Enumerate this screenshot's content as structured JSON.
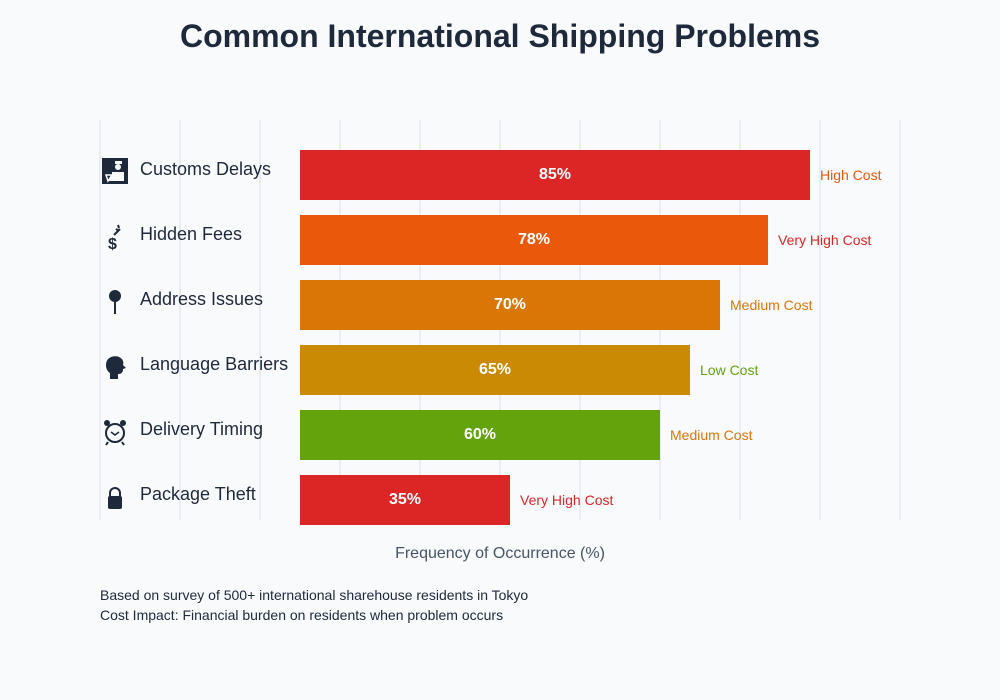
{
  "title": "Common International Shipping Problems",
  "xaxis_label": "Frequency of Occurrence (%)",
  "notes": [
    "Based on survey of 500+ international sharehouse residents in Tokyo",
    "Cost Impact: Financial burden on residents when problem occurs"
  ],
  "rows": [
    {
      "label": "Customs Delays",
      "icon": "customs-officer-icon",
      "value": 85,
      "value_label": "85%",
      "bar_color": "#dc2626",
      "cost": "High Cost",
      "cost_color": "#ea580c"
    },
    {
      "label": "Hidden Fees",
      "icon": "money-bag-icon",
      "value": 78,
      "value_label": "78%",
      "bar_color": "#ea580c",
      "cost": "Very High Cost",
      "cost_color": "#dc2626"
    },
    {
      "label": "Address Issues",
      "icon": "pushpin-icon",
      "value": 70,
      "value_label": "70%",
      "bar_color": "#d97706",
      "cost": "Medium Cost",
      "cost_color": "#d97706"
    },
    {
      "label": "Language Barriers",
      "icon": "speaking-head-icon",
      "value": 65,
      "value_label": "65%",
      "bar_color": "#ca8a04",
      "cost": "Low Cost",
      "cost_color": "#65a30d"
    },
    {
      "label": "Delivery Timing",
      "icon": "alarm-clock-icon",
      "value": 60,
      "value_label": "60%",
      "bar_color": "#65a30d",
      "cost": "Medium Cost",
      "cost_color": "#d97706"
    },
    {
      "label": "Package Theft",
      "icon": "padlock-icon",
      "value": 35,
      "value_label": "35%",
      "bar_color": "#dc2626",
      "cost": "Very High Cost",
      "cost_color": "#dc2626"
    }
  ],
  "chart_data": {
    "type": "bar",
    "orientation": "horizontal",
    "title": "Common International Shipping Problems",
    "xlabel": "Frequency of Occurrence (%)",
    "ylabel": "",
    "categories": [
      "Customs Delays",
      "Hidden Fees",
      "Address Issues",
      "Language Barriers",
      "Delivery Timing",
      "Package Theft"
    ],
    "values": [
      85,
      78,
      70,
      65,
      60,
      35
    ],
    "annotations": [
      "High Cost",
      "Very High Cost",
      "Medium Cost",
      "Low Cost",
      "Medium Cost",
      "Very High Cost"
    ],
    "grid": true,
    "legend": "none"
  }
}
